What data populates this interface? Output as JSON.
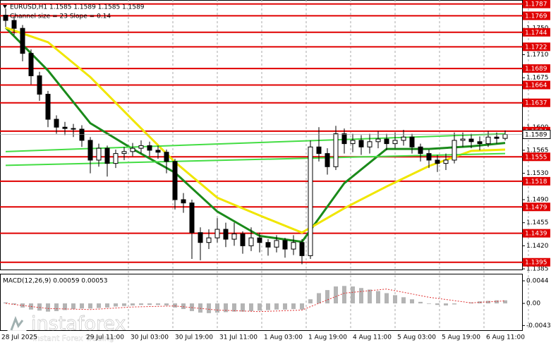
{
  "chart_data": {
    "type": "candlestick",
    "header": "EURUSD,H1  1.1585 1.1589 1.1585 1.1589",
    "subheader": "Channel size = 23 Slope = 0.14",
    "open": [
      1.177,
      1.1762,
      1.175,
      1.1712,
      1.1678,
      1.165,
      1.1612,
      1.16,
      1.1598,
      1.1597,
      1.158,
      1.155,
      1.1568,
      1.1545,
      1.156,
      1.1563,
      1.1568,
      1.1572,
      1.1565,
      1.1562,
      1.1548,
      1.149,
      1.1485,
      1.144,
      1.1425,
      1.1432,
      1.1445,
      1.143,
      1.1438,
      1.142,
      1.1432,
      1.1425,
      1.1418,
      1.1428,
      1.1415,
      1.1425,
      1.1405,
      1.157,
      1.156,
      1.154,
      1.159,
      1.1575,
      1.158,
      1.157,
      1.1578,
      1.1582,
      1.1575,
      1.158,
      1.1585,
      1.157,
      1.156,
      1.155,
      1.1545,
      1.155,
      1.158,
      1.1582,
      1.1578,
      1.1575,
      1.1585,
      1.1583
    ],
    "high": [
      1.178,
      1.1768,
      1.1755,
      1.1718,
      1.1684,
      1.1655,
      1.1618,
      1.1608,
      1.1605,
      1.1603,
      1.1585,
      1.1575,
      1.1572,
      1.1566,
      1.157,
      1.1576,
      1.158,
      1.1578,
      1.1572,
      1.1566,
      1.1552,
      1.15,
      1.149,
      1.1448,
      1.1445,
      1.1462,
      1.1455,
      1.1455,
      1.1442,
      1.1448,
      1.144,
      1.143,
      1.1436,
      1.1432,
      1.1436,
      1.143,
      1.158,
      1.16,
      1.1568,
      1.1602,
      1.1598,
      1.159,
      1.1588,
      1.159,
      1.1594,
      1.159,
      1.1592,
      1.1596,
      1.159,
      1.1575,
      1.1566,
      1.1558,
      1.156,
      1.1592,
      1.1592,
      1.159,
      1.1586,
      1.1594,
      1.1592,
      1.1595
    ],
    "low": [
      1.1752,
      1.174,
      1.17,
      1.1665,
      1.164,
      1.16,
      1.159,
      1.1588,
      1.1585,
      1.157,
      1.153,
      1.154,
      1.1525,
      1.1538,
      1.155,
      1.1556,
      1.156,
      1.1556,
      1.1552,
      1.153,
      1.1475,
      1.147,
      1.14,
      1.1398,
      1.1415,
      1.1425,
      1.1418,
      1.142,
      1.1408,
      1.1412,
      1.141,
      1.1405,
      1.141,
      1.1402,
      1.1406,
      1.1392,
      1.14,
      1.1548,
      1.1528,
      1.1535,
      1.156,
      1.1562,
      1.1558,
      1.156,
      1.1568,
      1.1565,
      1.1568,
      1.1572,
      1.156,
      1.1548,
      1.1538,
      1.1532,
      1.1535,
      1.1545,
      1.157,
      1.1568,
      1.1565,
      1.157,
      1.1575,
      1.158
    ],
    "close": [
      1.1762,
      1.175,
      1.1712,
      1.1678,
      1.165,
      1.1612,
      1.16,
      1.1598,
      1.1597,
      1.158,
      1.155,
      1.1568,
      1.1545,
      1.156,
      1.1563,
      1.1568,
      1.1572,
      1.1565,
      1.1562,
      1.1548,
      1.149,
      1.1485,
      1.144,
      1.1425,
      1.1432,
      1.1445,
      1.143,
      1.1438,
      1.142,
      1.1432,
      1.1425,
      1.1418,
      1.1428,
      1.1415,
      1.1425,
      1.1405,
      1.157,
      1.156,
      1.154,
      1.159,
      1.1575,
      1.158,
      1.157,
      1.1578,
      1.1582,
      1.1575,
      1.158,
      1.1585,
      1.157,
      1.156,
      1.155,
      1.1545,
      1.155,
      1.158,
      1.1582,
      1.1578,
      1.1575,
      1.1585,
      1.1583,
      1.1589
    ],
    "ylim": [
      1.1384,
      1.1793
    ],
    "yticks": [
      {
        "value": 1.175,
        "label": "1.1750"
      },
      {
        "value": 1.171,
        "label": "1.1710"
      },
      1.1675,
      {
        "value": 1.16,
        "label": "1.1600"
      },
      1.1565,
      {
        "value": 1.153,
        "label": "1.1530"
      },
      {
        "value": 1.149,
        "label": "1.1490"
      },
      1.1455,
      {
        "value": 1.142,
        "label": "1.1420"
      },
      1.1385
    ],
    "levels": [
      1.1787,
      1.1769,
      1.1744,
      1.1722,
      1.1689,
      1.1664,
      1.1637,
      1.1594,
      1.1555,
      1.1518,
      1.1479,
      1.1439,
      1.1395
    ],
    "level_color": "#e00000",
    "last_price": 1.1589,
    "x_labels": [
      "28 Jul 2025",
      "29 Jul 11:00",
      "30 Jul 03:00",
      "30 Jul 19:00",
      "31 Jul 11:00",
      "1 Aug 03:00",
      "1 Aug 19:00",
      "4 Aug 11:00",
      "5 Aug 03:00",
      "5 Aug 19:00",
      "6 Aug 11:00"
    ],
    "lines": [
      {
        "color": "#1a8a1a",
        "width": 3,
        "x": [
          0,
          5,
          10,
          15,
          20,
          25,
          30,
          35,
          40,
          45,
          50,
          55,
          59
        ],
        "values": [
          1.1751,
          1.1686,
          1.1606,
          1.1567,
          1.1531,
          1.1472,
          1.1435,
          1.1426,
          1.1515,
          1.1567,
          1.1567,
          1.1571,
          1.1576
        ]
      },
      {
        "color": "#f0e600",
        "width": 3,
        "x": [
          0,
          5,
          10,
          15,
          20,
          25,
          30,
          35,
          40,
          45,
          50,
          55,
          59
        ],
        "values": [
          1.1751,
          1.1729,
          1.1676,
          1.1611,
          1.1547,
          1.1493,
          1.1466,
          1.144,
          1.1477,
          1.151,
          1.1541,
          1.1564,
          1.1566
        ]
      },
      {
        "color": "#44dd44",
        "width": 2,
        "x": [
          0,
          59
        ],
        "values": [
          1.1563,
          1.159
        ]
      },
      {
        "color": "#44dd44",
        "width": 2,
        "x": [
          0,
          59
        ],
        "values": [
          1.1542,
          1.156
        ]
      }
    ],
    "macd": {
      "label": "MACD(12,26,9) 0.00059 0.00053",
      "color": "#b4b4b4",
      "values": [
        0.0002,
        -0.0002,
        -0.0008,
        -0.0012,
        -0.0014,
        -0.0016,
        -0.0015,
        -0.0013,
        -0.0011,
        -0.001,
        -0.001,
        -0.0009,
        -0.0008,
        -0.0006,
        -0.0005,
        -0.0004,
        -0.0003,
        -0.0003,
        -0.0003,
        -0.0004,
        -0.0008,
        -0.0011,
        -0.0015,
        -0.0018,
        -0.0019,
        -0.0018,
        -0.0017,
        -0.0016,
        -0.0016,
        -0.0015,
        -0.0014,
        -0.0013,
        -0.0012,
        -0.0012,
        -0.0011,
        -0.0012,
        0.0008,
        0.002,
        0.0026,
        0.0033,
        0.0034,
        0.0033,
        0.003,
        0.0027,
        0.0024,
        0.002,
        0.0016,
        0.0012,
        0.0008,
        0.0003,
        -0.0001,
        -0.0003,
        -0.0004,
        -0.0002,
        0.0,
        0.0002,
        0.0004,
        0.0005,
        0.0006,
        0.0006
      ],
      "signal": {
        "color": "#e03030",
        "x": [
          0,
          5,
          10,
          15,
          20,
          25,
          30,
          35,
          40,
          45,
          50,
          55,
          59
        ],
        "values": [
          0.0,
          -0.001,
          -0.0012,
          -0.0007,
          -0.0005,
          -0.0013,
          -0.0016,
          -0.0013,
          0.002,
          0.0028,
          0.0012,
          0.0001,
          0.0005
        ]
      },
      "ylim": [
        -0.00522,
        0.00578
      ],
      "yticks": [
        0.0044,
        {
          "value": 0,
          "label": "0.00"
        },
        -0.00431
      ]
    },
    "watermark": {
      "brand": "instaforex",
      "tagline": "Instant Forex Trading"
    }
  }
}
